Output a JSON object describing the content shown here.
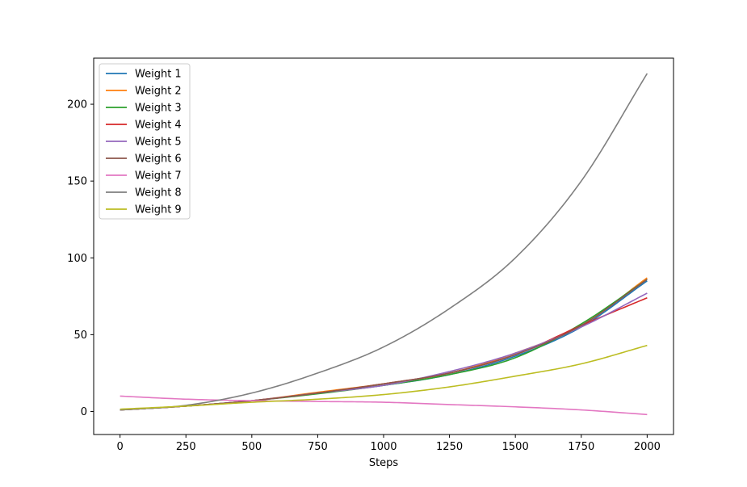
{
  "chart_data": {
    "type": "line",
    "title": "",
    "xlabel": "Steps",
    "ylabel": "",
    "xlim": [
      -100,
      2100
    ],
    "ylim": [
      -15,
      230
    ],
    "xticks": [
      0,
      250,
      500,
      750,
      1000,
      1250,
      1500,
      1750,
      2000
    ],
    "yticks": [
      0,
      50,
      100,
      150,
      200
    ],
    "grid": false,
    "legend": "top-left",
    "x": [
      0,
      250,
      500,
      750,
      1000,
      1250,
      1500,
      1750,
      2000
    ],
    "series": [
      {
        "name": "Weight 1",
        "color": "#1f77b4",
        "values": [
          1,
          3.5,
          7,
          12,
          17,
          24,
          36,
          55,
          85
        ]
      },
      {
        "name": "Weight 2",
        "color": "#ff7f0e",
        "values": [
          1,
          3.5,
          7,
          12.5,
          18,
          25,
          38,
          56,
          87
        ]
      },
      {
        "name": "Weight 3",
        "color": "#2ca02c",
        "values": [
          1,
          3.5,
          7,
          11.5,
          17,
          24,
          35,
          57,
          86
        ]
      },
      {
        "name": "Weight 4",
        "color": "#d62728",
        "values": [
          1,
          3.5,
          7,
          12,
          18,
          25,
          37,
          56,
          74
        ]
      },
      {
        "name": "Weight 5",
        "color": "#9467bd",
        "values": [
          1,
          3.5,
          7,
          12,
          17,
          26,
          38,
          55,
          77
        ]
      },
      {
        "name": "Weight 6",
        "color": "#8c564b",
        "values": [
          1,
          3.5,
          7,
          12,
          18,
          25,
          37,
          56,
          86
        ]
      },
      {
        "name": "Weight 7",
        "color": "#e377c2",
        "values": [
          10,
          8,
          7,
          6.5,
          6,
          4.5,
          3,
          1,
          -2
        ]
      },
      {
        "name": "Weight 8",
        "color": "#7f7f7f",
        "values": [
          1,
          4,
          12,
          25,
          42,
          67,
          100,
          150,
          220
        ]
      },
      {
        "name": "Weight 9",
        "color": "#bcbd22",
        "values": [
          1.5,
          3.5,
          6,
          8,
          11,
          16,
          23,
          31,
          43
        ]
      }
    ]
  }
}
